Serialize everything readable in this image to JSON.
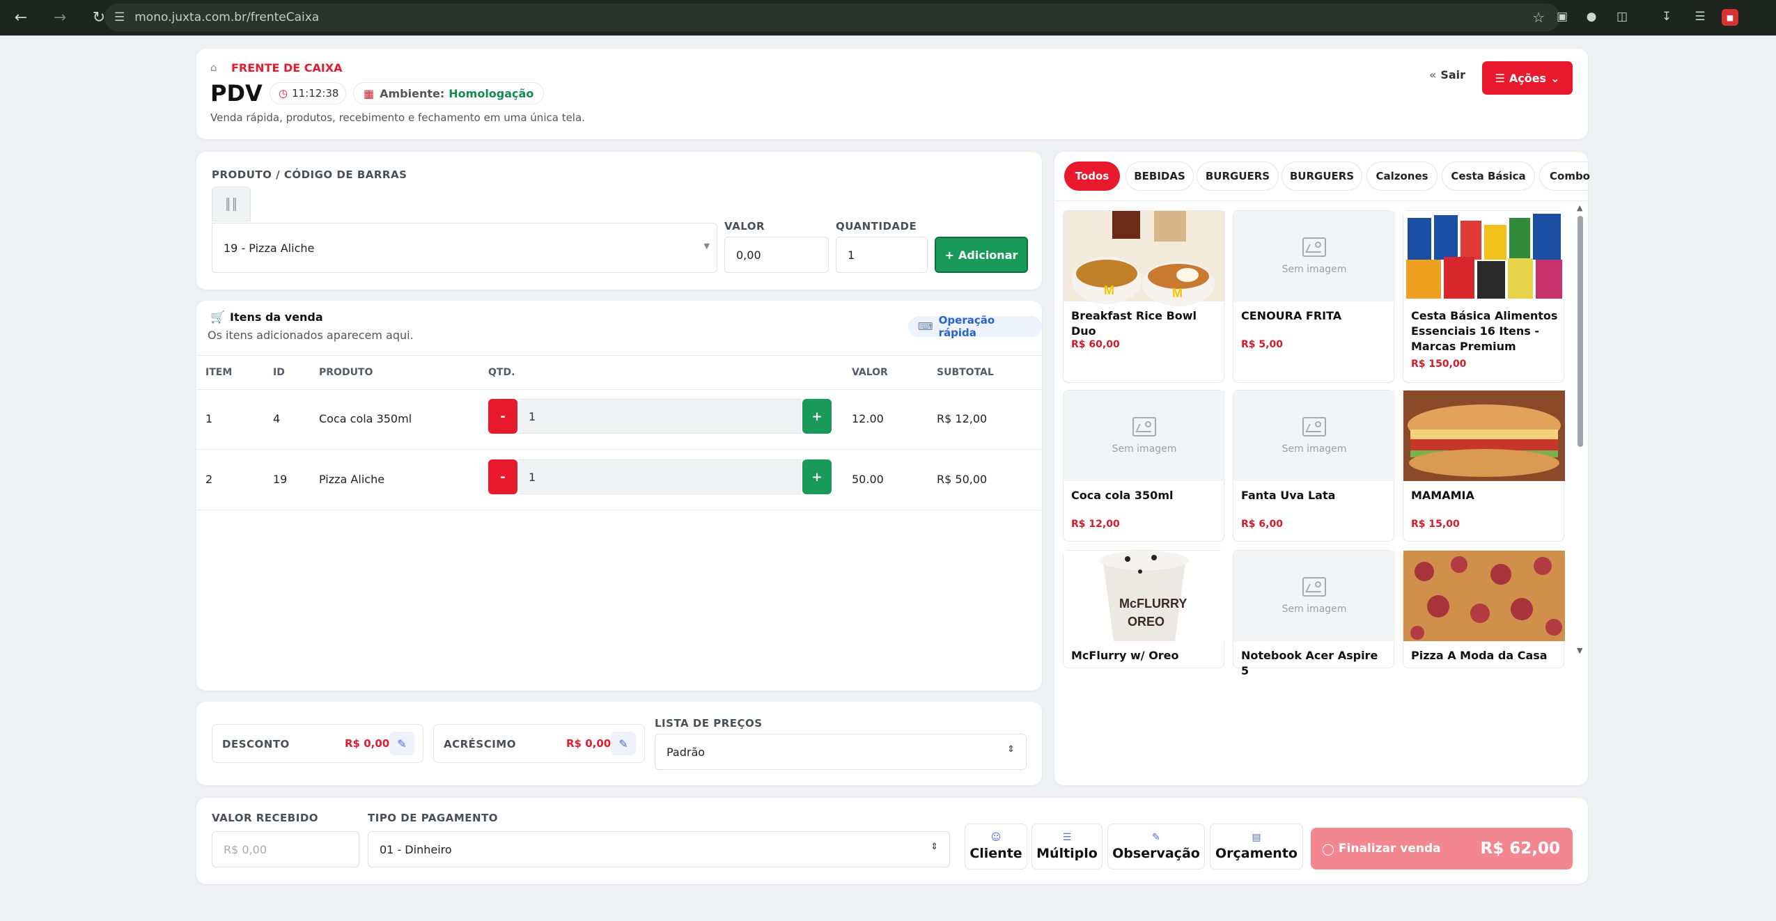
{
  "browser": {
    "url": "mono.juxta.com.br/frenteCaixa",
    "back_icon": "arrow-left-icon",
    "forward_icon": "arrow-right-icon",
    "reload_icon": "reload-icon",
    "bookmark_icon": "star-icon"
  },
  "header": {
    "section_label": "FRENTE DE CAIXA",
    "title": "PDV",
    "time": "11:12:38",
    "env_label": "Ambiente:",
    "env_value": "Homologação",
    "subtitle": "Venda rápida, produtos, recebimento e fechamento em uma única tela.",
    "exit_label": "Sair",
    "actions_label": "Ações"
  },
  "product_form": {
    "product_label": "PRODUTO / CÓDIGO DE BARRAS",
    "product_value": "19 - Pizza Aliche",
    "value_label": "VALOR",
    "value_value": "0,00",
    "qty_label": "QUANTIDADE",
    "qty_value": "1",
    "add_label": "Adicionar"
  },
  "sale_items": {
    "title": "Itens da venda",
    "subtitle": "Os itens adicionados aparecem aqui.",
    "quick_op_label": "Operação rápida",
    "columns": [
      "ITEM",
      "ID",
      "PRODUTO",
      "QTD.",
      "VALOR",
      "SUBTOTAL"
    ],
    "rows": [
      {
        "item": "1",
        "id": "4",
        "product": "Coca cola 350ml",
        "qty": "1",
        "value": "12.00",
        "subtotal": "R$ 12,00"
      },
      {
        "item": "2",
        "id": "19",
        "product": "Pizza Aliche",
        "qty": "1",
        "value": "50.00",
        "subtotal": "R$ 50,00"
      }
    ],
    "minus": "-",
    "plus": "+"
  },
  "adjustments": {
    "discount_label": "DESCONTO",
    "discount_value": "R$ 0,00",
    "surcharge_label": "ACRÉSCIMO",
    "surcharge_value": "R$ 0,00",
    "price_list_label": "LISTA DE PREÇOS",
    "price_list_value": "Padrão"
  },
  "categories": [
    "Todos",
    "BEBIDAS",
    "BURGUERS",
    "BURGUERS",
    "Calzones",
    "Cesta Básica",
    "Combo"
  ],
  "products": [
    {
      "name": "Breakfast Rice Bowl Duo",
      "price": "R$ 60,00",
      "image": "photo"
    },
    {
      "name": "CENOURA FRITA",
      "price": "R$ 5,00",
      "image": "Sem imagem"
    },
    {
      "name": "Cesta Básica Alimentos Essenciais 16 Itens - Marcas Premium",
      "price": "R$ 150,00",
      "image": "photo"
    },
    {
      "name": "Coca cola 350ml",
      "price": "R$ 12,00",
      "image": "Sem imagem"
    },
    {
      "name": "Fanta Uva Lata",
      "price": "R$ 6,00",
      "image": "Sem imagem"
    },
    {
      "name": "MAMAMIA",
      "price": "R$ 15,00",
      "image": "photo"
    },
    {
      "name": "McFlurry w/ Oreo",
      "price": "",
      "image": "photo"
    },
    {
      "name": "Notebook Acer Aspire 5",
      "price": "",
      "image": "Sem imagem"
    },
    {
      "name": "Pizza A Moda da Casa",
      "price": "",
      "image": "photo"
    }
  ],
  "no_image_text": "Sem imagem",
  "payment": {
    "received_label": "VALOR RECEBIDO",
    "received_placeholder": "R$ 0,00",
    "type_label": "TIPO DE PAGAMENTO",
    "type_value": "01 - Dinheiro",
    "client_label": "Cliente",
    "multiple_label": "Múltiplo",
    "note_label": "Observação",
    "quote_label": "Orçamento",
    "finish_label": "Finalizar venda",
    "total": "R$ 62,00"
  },
  "colors": {
    "accent_red": "#e8192c",
    "accent_green": "#1a9a5a",
    "finish_button": "#f2878f"
  }
}
